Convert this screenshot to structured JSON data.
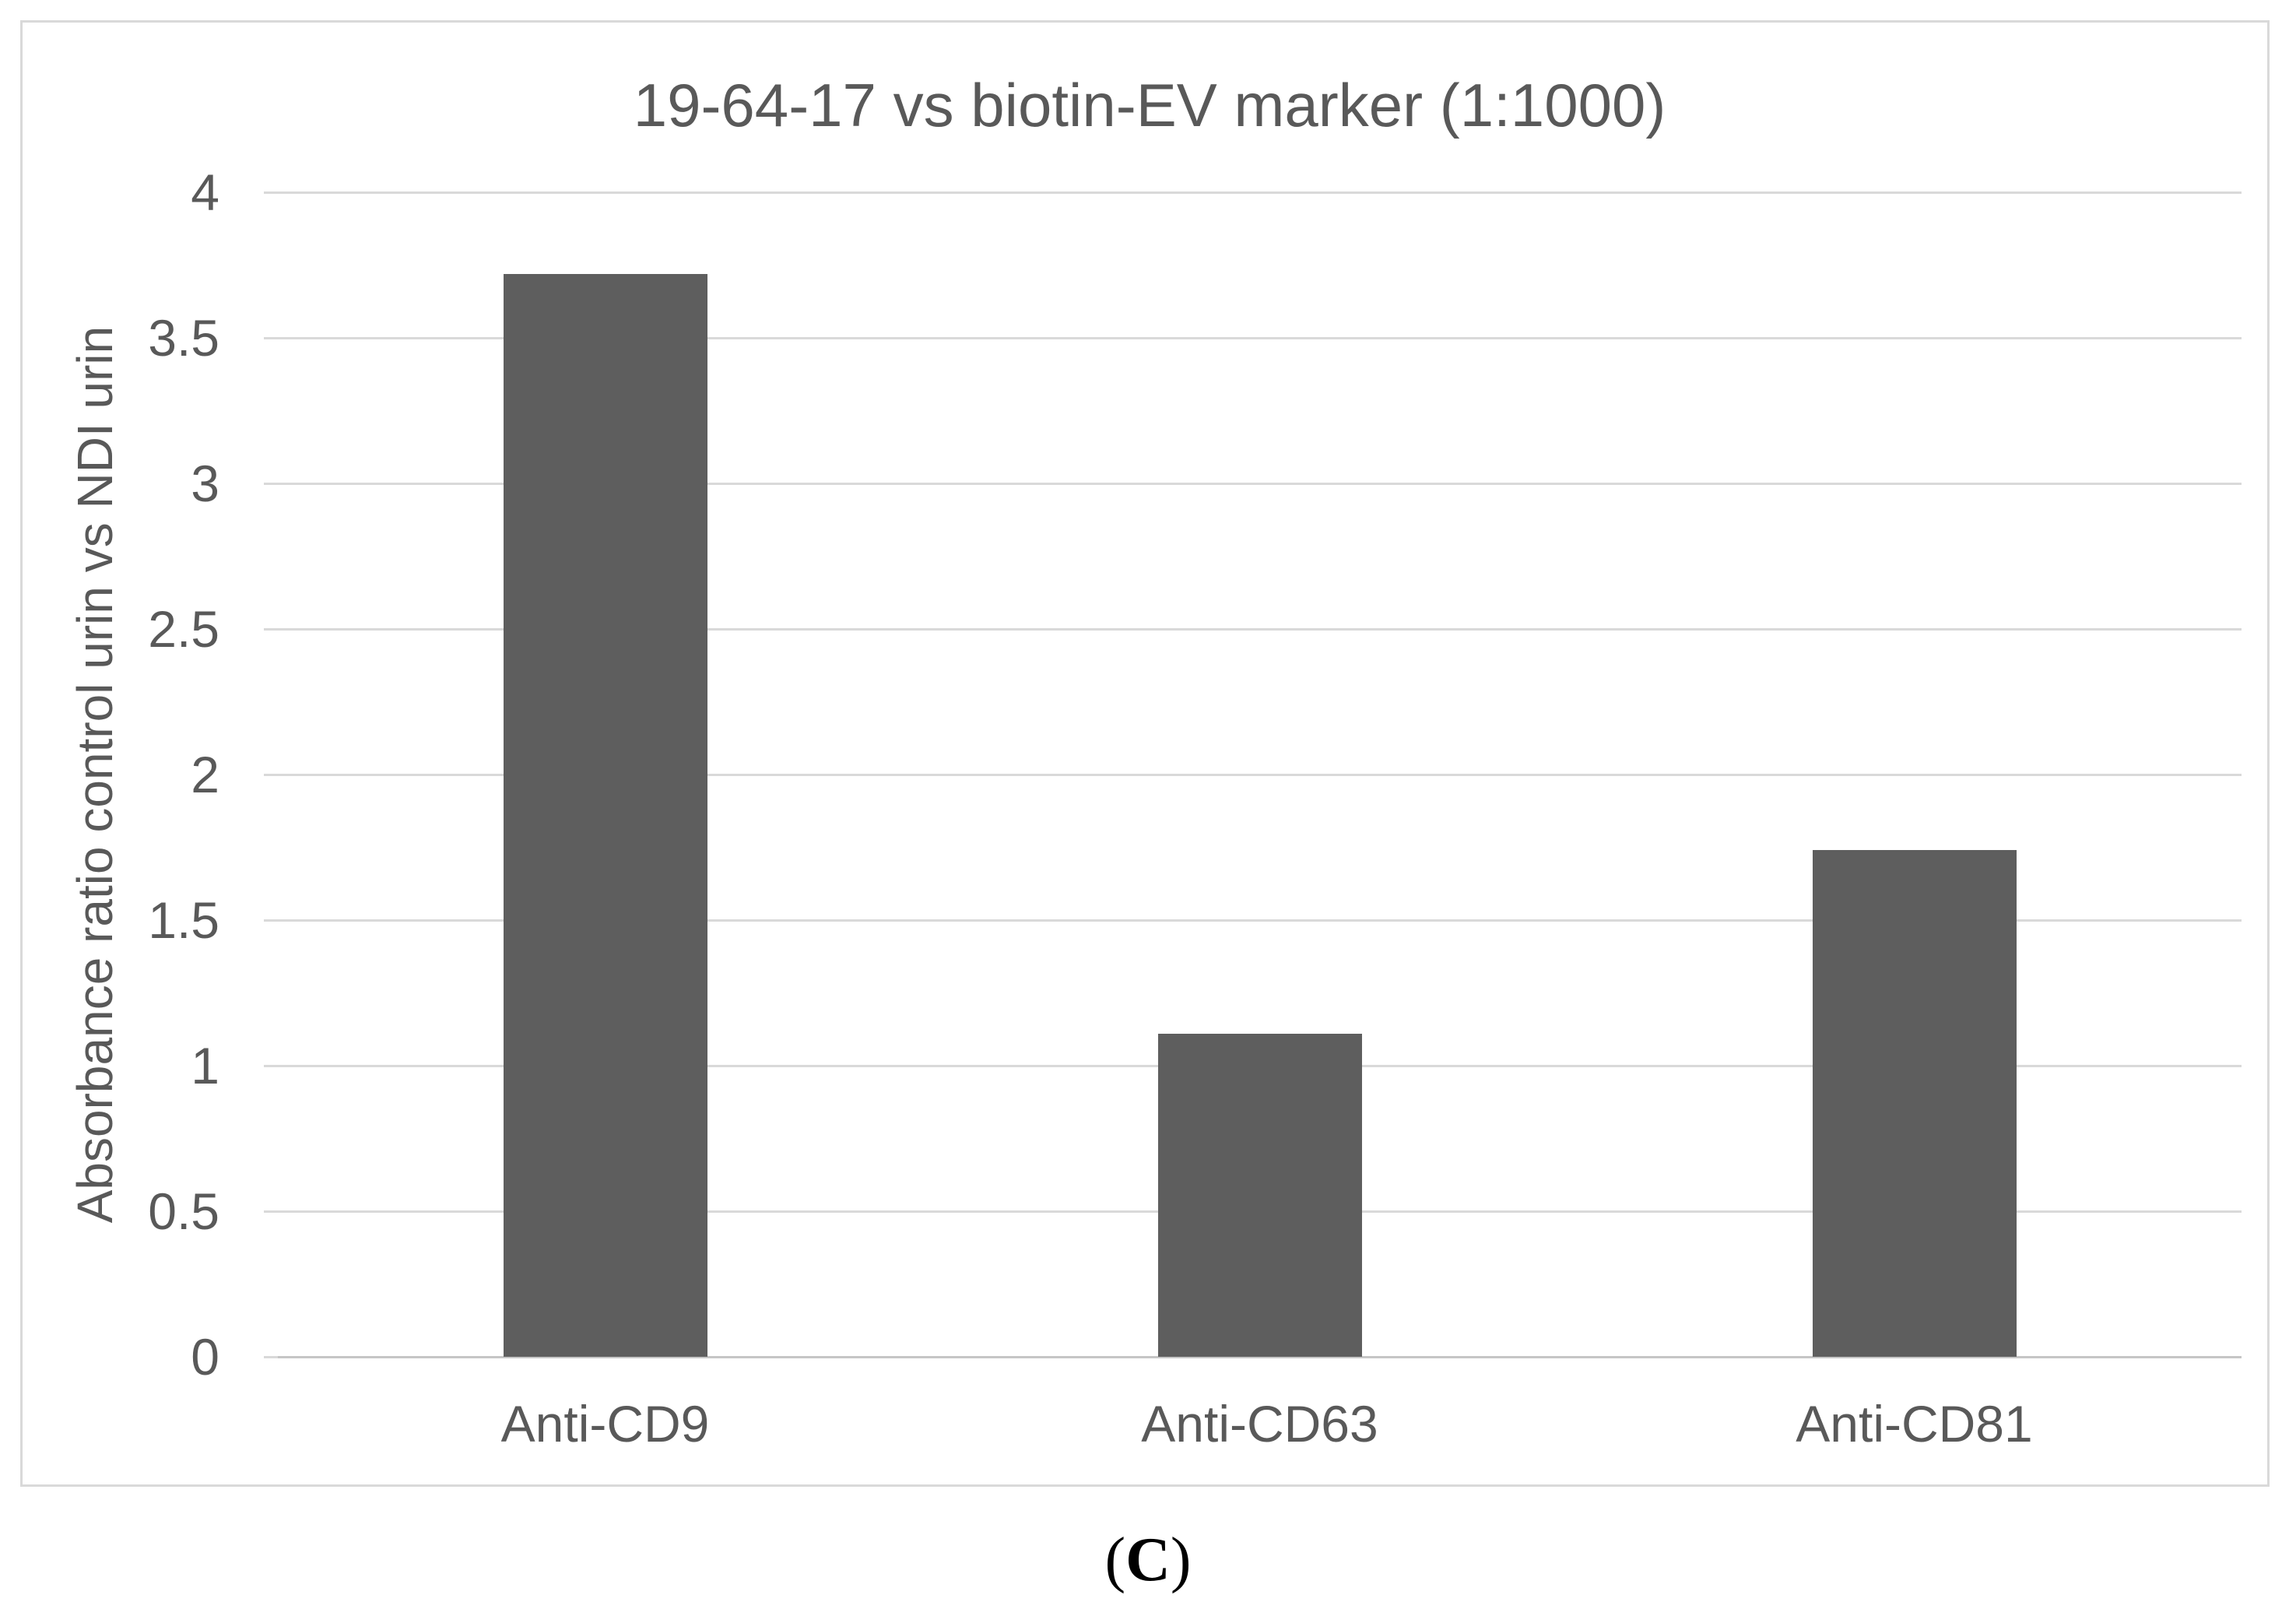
{
  "figure": {
    "caption": {
      "open": "(",
      "letter": "C",
      "close": ")"
    }
  },
  "chart_data": {
    "type": "bar",
    "title": "19-64-17 vs biotin-EV marker (1:1000)",
    "categories": [
      "Anti-CD9",
      "Anti-CD63",
      "Anti-CD81"
    ],
    "values": [
      3.72,
      1.11,
      1.74
    ],
    "xlabel": "",
    "ylabel": "Absorbance ratio control urin vs NDI urin",
    "ylim": [
      0,
      4
    ],
    "ytick_labels": [
      "0",
      "0.5",
      "1",
      "1.5",
      "2",
      "2.5",
      "3",
      "3.5",
      "4"
    ],
    "grid": true,
    "legend": "none",
    "colors": {
      "bar": "#5e5e5e",
      "gridline": "#d9d9d9",
      "axis_line": "#c6c6c6",
      "text": "#595959",
      "frame_border": "#d9d9d9",
      "caption_text": "#000000",
      "background": "#ffffff"
    }
  }
}
